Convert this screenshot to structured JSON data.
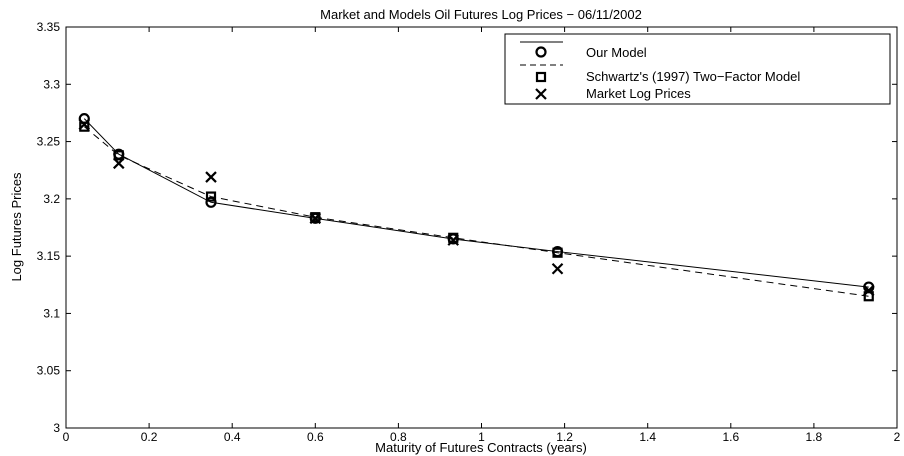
{
  "chart_data": {
    "type": "line",
    "title": "Market and Models Oil Futures Log Prices − 06/11/2002",
    "xlabel": "Maturity of Futures Contracts (years)",
    "ylabel": "Log Futures Prices",
    "xlim": [
      0,
      2
    ],
    "ylim": [
      3,
      3.35
    ],
    "x_ticks": [
      0,
      0.2,
      0.4,
      0.6,
      0.8,
      1,
      1.2,
      1.4,
      1.6,
      1.8,
      2
    ],
    "x_tick_labels": [
      "0",
      "0.2",
      "0.4",
      "0.6",
      "0.8",
      "1",
      "1.2",
      "1.4",
      "1.6",
      "1.8",
      "2"
    ],
    "y_ticks": [
      3,
      3.05,
      3.1,
      3.15,
      3.2,
      3.25,
      3.3,
      3.35
    ],
    "y_tick_labels": [
      "3",
      "3.05",
      "3.1",
      "3.15",
      "3.2",
      "3.25",
      "3.3",
      "3.35"
    ],
    "grid": false,
    "legend_position": "top-right",
    "x": [
      0.044,
      0.127,
      0.349,
      0.6,
      0.932,
      1.183,
      1.932
    ],
    "series": [
      {
        "name": "Our Model",
        "marker": "circle",
        "line": "solid",
        "values": [
          3.27,
          3.239,
          3.197,
          3.183,
          3.165,
          3.154,
          3.123
        ]
      },
      {
        "name": "Schwartz's (1997) Two−Factor Model",
        "marker": "square",
        "line": "dashed",
        "values": [
          3.263,
          3.238,
          3.202,
          3.184,
          3.166,
          3.153,
          3.115
        ]
      },
      {
        "name": "Market Log Prices",
        "marker": "x",
        "line": "none",
        "values": [
          3.265,
          3.231,
          3.219,
          3.183,
          3.164,
          3.139,
          3.12
        ]
      }
    ]
  }
}
